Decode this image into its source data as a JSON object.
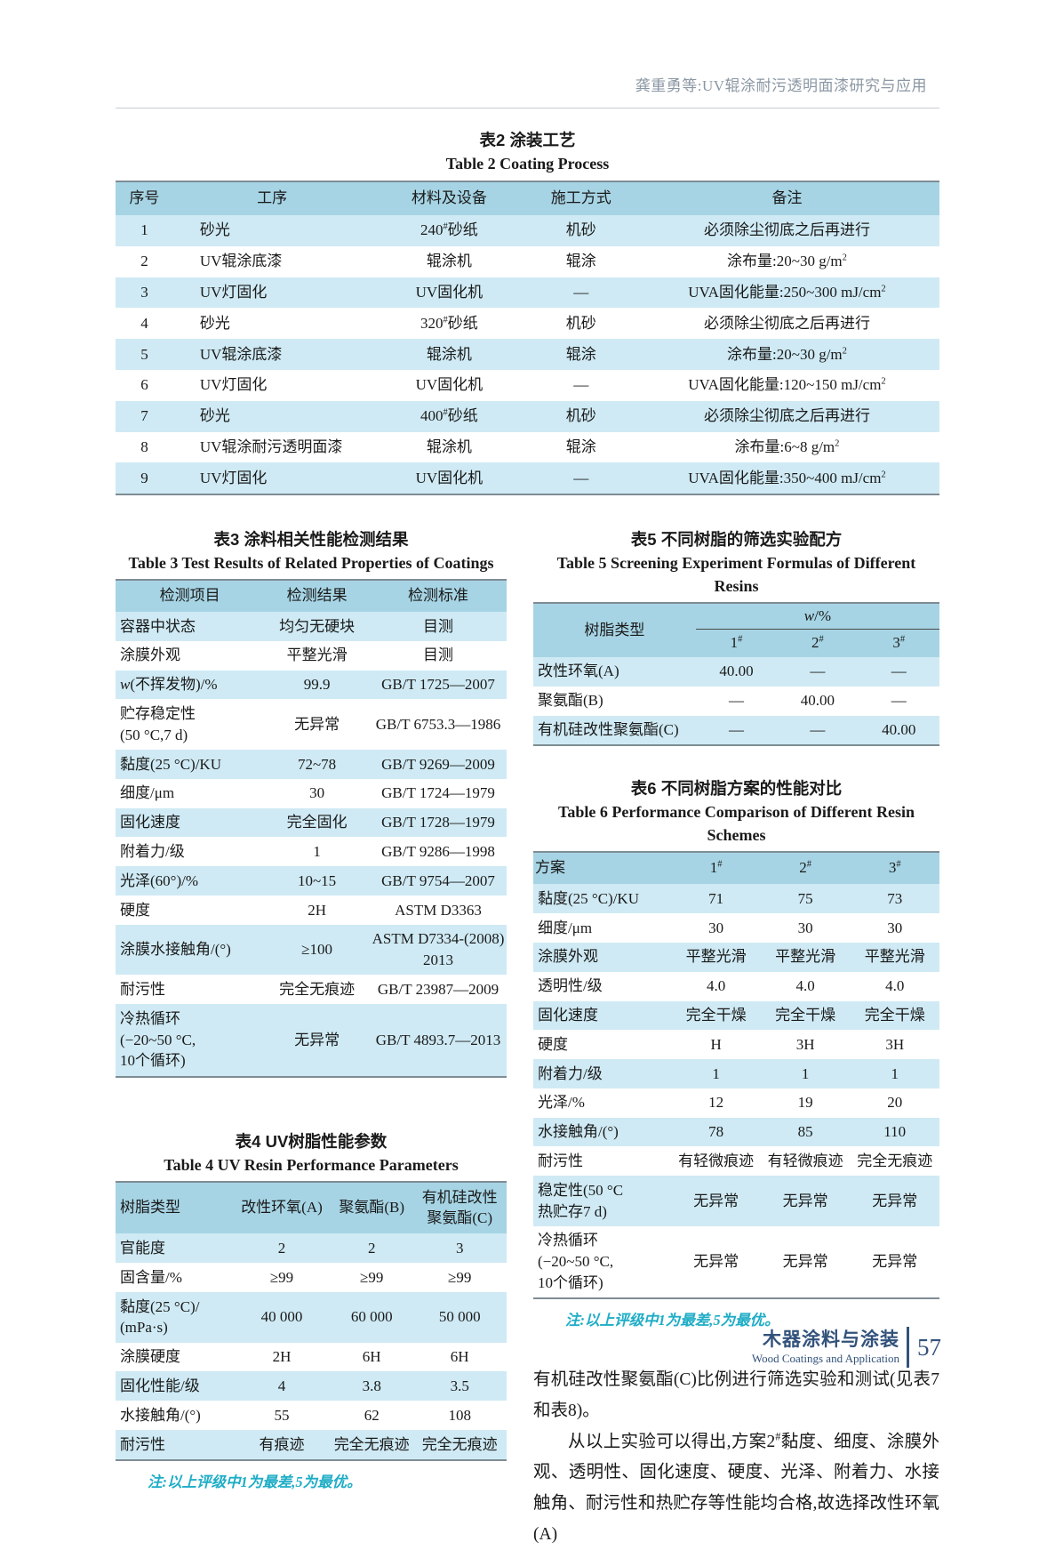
{
  "colors": {
    "table_header_blue": "#a6d4e4",
    "row_stripe_blue": "#cfeaf4",
    "note_cyan": "#1fadc6",
    "footer_navy": "#32527b",
    "running_head_gray": "#8a97a3"
  },
  "running_head": "龚重勇等:UV辊涂耐污透明面漆研究与应用",
  "table2": {
    "title_cn": "表2  涂装工艺",
    "title_en": "Table 2  Coating Process",
    "headers": [
      "序号",
      "工序",
      "材料及设备",
      "施工方式",
      "备注"
    ],
    "rows": [
      [
        "1",
        "砂光",
        "240^{#}砂纸",
        "机砂",
        "必须除尘彻底之后再进行"
      ],
      [
        "2",
        "UV辊涂底漆",
        "辊涂机",
        "辊涂",
        "涂布量:20~30 g/m^{2}"
      ],
      [
        "3",
        "UV灯固化",
        "UV固化机",
        "—",
        "UVA固化能量:250~300 mJ/cm^{2}"
      ],
      [
        "4",
        "砂光",
        "320^{#}砂纸",
        "机砂",
        "必须除尘彻底之后再进行"
      ],
      [
        "5",
        "UV辊涂底漆",
        "辊涂机",
        "辊涂",
        "涂布量:20~30 g/m^{2}"
      ],
      [
        "6",
        "UV灯固化",
        "UV固化机",
        "—",
        "UVA固化能量:120~150 mJ/cm^{2}"
      ],
      [
        "7",
        "砂光",
        "400^{#}砂纸",
        "机砂",
        "必须除尘彻底之后再进行"
      ],
      [
        "8",
        "UV辊涂耐污透明面漆",
        "辊涂机",
        "辊涂",
        "涂布量:6~8 g/m^{2}"
      ],
      [
        "9",
        "UV灯固化",
        "UV固化机",
        "—",
        "UVA固化能量:350~400 mJ/cm^{2}"
      ]
    ]
  },
  "table3": {
    "title_cn": "表3  涂料相关性能检测结果",
    "title_en": "Table 3  Test Results of Related Properties of Coatings",
    "headers": [
      "检测项目",
      "检测结果",
      "检测标准"
    ],
    "rows": [
      [
        "容器中状态",
        "均匀无硬块",
        "目测"
      ],
      [
        "涂膜外观",
        "平整光滑",
        "目测"
      ],
      [
        "*w*(不挥发物)/%",
        "99.9",
        "GB/T 1725—2007"
      ],
      [
        "贮存稳定性\n(50 °C,7 d)",
        "无异常",
        "GB/T 6753.3—1986"
      ],
      [
        "黏度(25 °C)/KU",
        "72~78",
        "GB/T 9269—2009"
      ],
      [
        "细度/μm",
        "30",
        "GB/T 1724—1979"
      ],
      [
        "固化速度",
        "完全固化",
        "GB/T 1728—1979"
      ],
      [
        "附着力/级",
        "1",
        "GB/T 9286—1998"
      ],
      [
        "光泽(60°)/%",
        "10~15",
        "GB/T 9754—2007"
      ],
      [
        "硬度",
        "2H",
        "ASTM D3363"
      ],
      [
        "涂膜水接触角/(°)",
        "≥100",
        "ASTM D7334-(2008)\n2013"
      ],
      [
        "耐污性",
        "完全无痕迹",
        "GB/T 23987—2009"
      ],
      [
        "冷热循环\n(−20~50 °C,\n10个循环)",
        "无异常",
        "GB/T 4893.7—2013"
      ]
    ]
  },
  "table4": {
    "title_cn": "表4  UV树脂性能参数",
    "title_en": "Table 4  UV Resin Performance Parameters",
    "headers": [
      "树脂类型",
      "改性环氧(A)",
      "聚氨酯(B)",
      "有机硅改性\n聚氨酯(C)"
    ],
    "rows": [
      [
        "官能度",
        "2",
        "2",
        "3"
      ],
      [
        "固含量/%",
        "≥99",
        "≥99",
        "≥99"
      ],
      [
        "黏度(25 °C)/\n(mPa·s)",
        "40 000",
        "60 000",
        "50 000"
      ],
      [
        "涂膜硬度",
        "2H",
        "6H",
        "6H"
      ],
      [
        "固化性能/级",
        "4",
        "3.8",
        "3.5"
      ],
      [
        "水接触角/(°)",
        "55",
        "62",
        "108"
      ],
      [
        "耐污性",
        "有痕迹",
        "完全无痕迹",
        "完全无痕迹"
      ]
    ],
    "note": "注:以上评级中1为最差,5为最优。"
  },
  "table5": {
    "title_cn": "表5  不同树脂的筛选实验配方",
    "title_en": "Table 5  Screening Experiment Formulas of Different Resins",
    "col_header": "树脂类型",
    "group_header": "*w*/%",
    "sub_headers": [
      "1^{#}",
      "2^{#}",
      "3^{#}"
    ],
    "rows": [
      [
        "改性环氧(A)",
        "40.00",
        "—",
        "—"
      ],
      [
        "聚氨酯(B)",
        "—",
        "40.00",
        "—"
      ],
      [
        "有机硅改性聚氨酯(C)",
        "—",
        "—",
        "40.00"
      ]
    ]
  },
  "table6": {
    "title_cn": "表6  不同树脂方案的性能对比",
    "title_en": "Table 6  Performance Comparison of Different Resin Schemes",
    "headers": [
      "方案",
      "1^{#}",
      "2^{#}",
      "3^{#}"
    ],
    "rows": [
      [
        "黏度(25 °C)/KU",
        "71",
        "75",
        "73"
      ],
      [
        "细度/μm",
        "30",
        "30",
        "30"
      ],
      [
        "涂膜外观",
        "平整光滑",
        "平整光滑",
        "平整光滑"
      ],
      [
        "透明性/级",
        "4.0",
        "4.0",
        "4.0"
      ],
      [
        "固化速度",
        "完全干燥",
        "完全干燥",
        "完全干燥"
      ],
      [
        "硬度",
        "H",
        "3H",
        "3H"
      ],
      [
        "附着力/级",
        "1",
        "1",
        "1"
      ],
      [
        "光泽/%",
        "12",
        "19",
        "20"
      ],
      [
        "水接触角/(°)",
        "78",
        "85",
        "110"
      ],
      [
        "耐污性",
        "有轻微痕迹",
        "有轻微痕迹",
        "完全无痕迹"
      ],
      [
        "稳定性(50 °C\n热贮存7 d)",
        "无异常",
        "无异常",
        "无异常"
      ],
      [
        "冷热循环\n(−20~50 °C,\n10个循环)",
        "无异常",
        "无异常",
        "无异常"
      ]
    ],
    "note": "注:以上评级中1为最差,5为最优。"
  },
  "body_text": {
    "p1": "有机硅改性聚氨酯(C)比例进行筛选实验和测试(见表7和表8)。",
    "p2": "从以上实验可以得出,方案2^{#}黏度、细度、涂膜外观、透明性、固化速度、硬度、光泽、附着力、水接触角、耐污性和热贮存等性能均合格,故选择改性环氧(A)"
  },
  "footer": {
    "journal_cn": "木器涂料与涂装",
    "journal_en": "Wood Coatings and Application",
    "page_number": "57"
  }
}
